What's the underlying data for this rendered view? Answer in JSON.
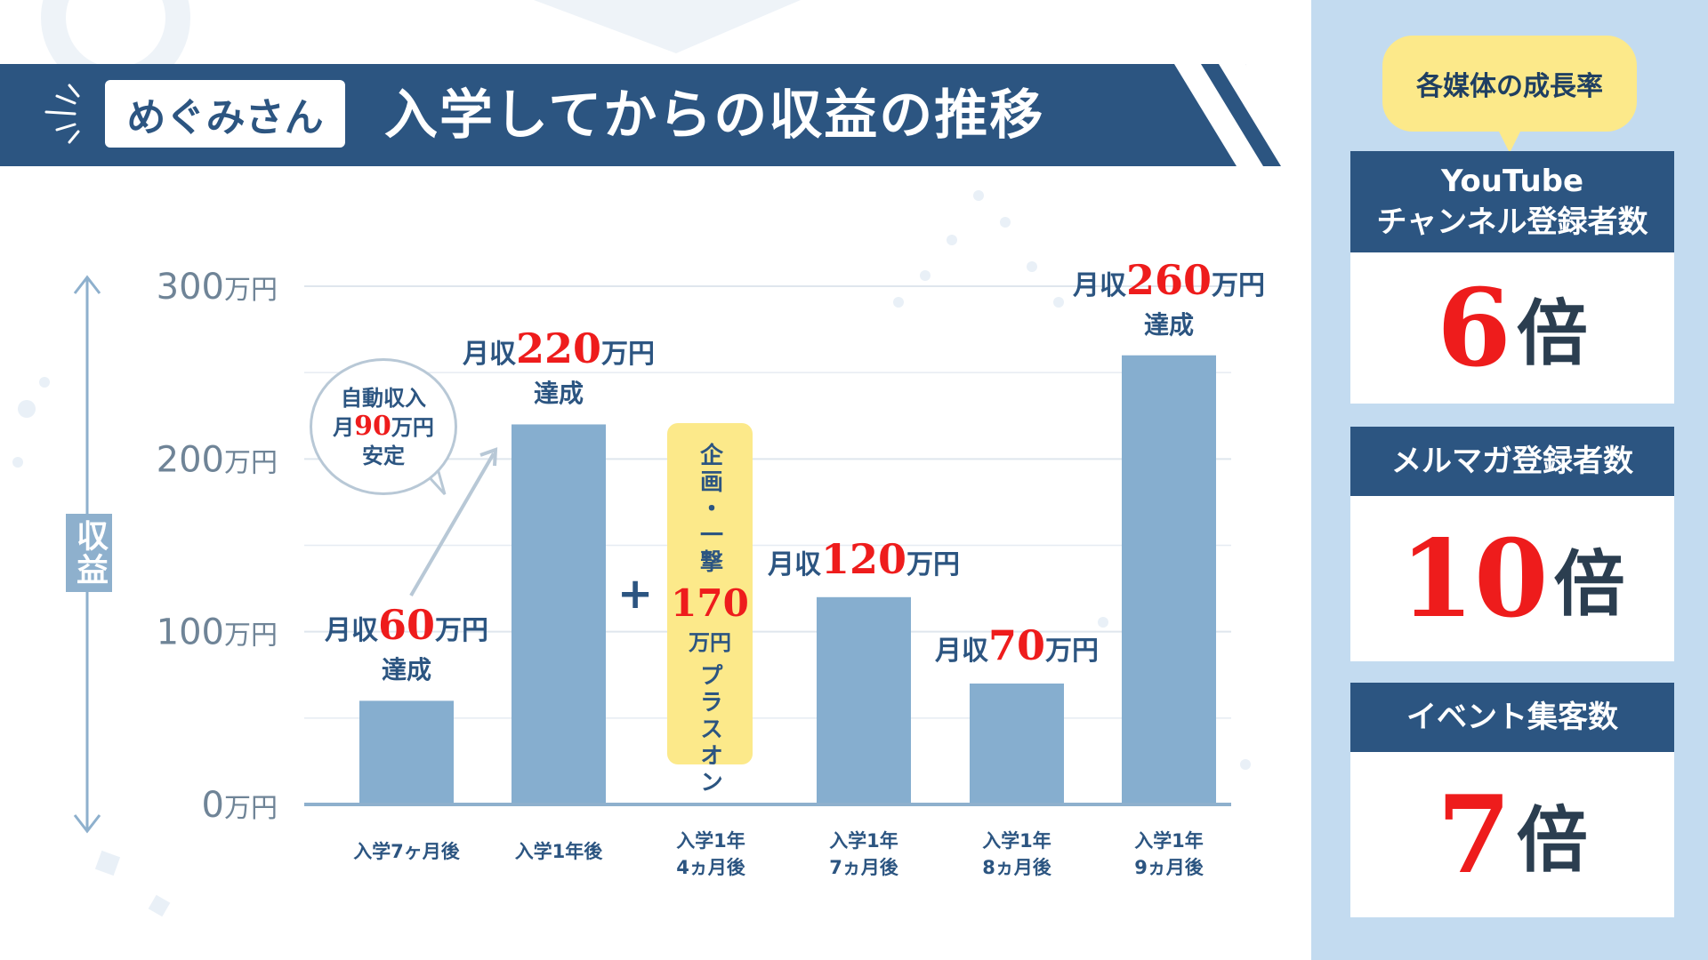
{
  "header": {
    "name": "めぐみさん",
    "title": "入学してからの収益の推移"
  },
  "chart_data": {
    "type": "bar",
    "title": "入学してからの収益の推移",
    "ylabel": "収益",
    "ylim": [
      0,
      300
    ],
    "yticks": [
      {
        "value": 0,
        "label": "0万円"
      },
      {
        "value": 100,
        "label": "100万円"
      },
      {
        "value": 200,
        "label": "200万円"
      },
      {
        "value": 300,
        "label": "300万円"
      }
    ],
    "categories": [
      "入学7ヶ月後",
      "入学1年後",
      "入学1年4ヵ月後",
      "入学1年7ヵ月後",
      "入学1年8ヵ月後",
      "入学1年9ヵ月後"
    ],
    "category_lines": [
      [
        "入学7ヶ月後"
      ],
      [
        "入学1年後"
      ],
      [
        "入学1年",
        "4ヵ月後"
      ],
      [
        "入学1年",
        "7ヵ月後"
      ],
      [
        "入学1年",
        "8ヵ月後"
      ],
      [
        "入学1年",
        "9ヵ月後"
      ]
    ],
    "values": [
      60,
      220,
      null,
      120,
      70,
      260
    ],
    "bar_color": "#86aecf",
    "grid": true,
    "annotations": [
      {
        "index": 0,
        "prefix": "月収",
        "value": "60",
        "unit": "万円",
        "suffix": "達成"
      },
      {
        "index": 1,
        "prefix": "月収",
        "value": "220",
        "unit": "万円",
        "suffix": "達成"
      },
      {
        "index": 3,
        "prefix": "月収",
        "value": "120",
        "unit": "万円",
        "suffix": ""
      },
      {
        "index": 4,
        "prefix": "月収",
        "value": "70",
        "unit": "万円",
        "suffix": ""
      },
      {
        "index": 5,
        "prefix": "月収",
        "value": "260",
        "unit": "万円",
        "suffix": "達成"
      }
    ],
    "callout": {
      "line1": "自動収入",
      "prefix": "月",
      "value": "90",
      "unit": "万円",
      "line3": "安定"
    },
    "addon": {
      "plus": "+",
      "label": "企画・一撃",
      "value": "170",
      "unit": "万円",
      "suffix": "プラスオン"
    }
  },
  "side_panel": {
    "heading": "各媒体の成長率",
    "cards": [
      {
        "label_lines": [
          "YouTube",
          "チャンネル登録者数"
        ],
        "value": "6",
        "unit": "倍"
      },
      {
        "label_lines": [
          "メルマガ登録者数"
        ],
        "value": "10",
        "unit": "倍"
      },
      {
        "label_lines": [
          "イベント集客数"
        ],
        "value": "7",
        "unit": "倍"
      }
    ]
  },
  "colors": {
    "navy": "#2c5581",
    "bar": "#86aecf",
    "accent_red": "#ee1c1c",
    "highlight_yellow": "#fce98a",
    "panel_blue": "#c3dbf0"
  }
}
